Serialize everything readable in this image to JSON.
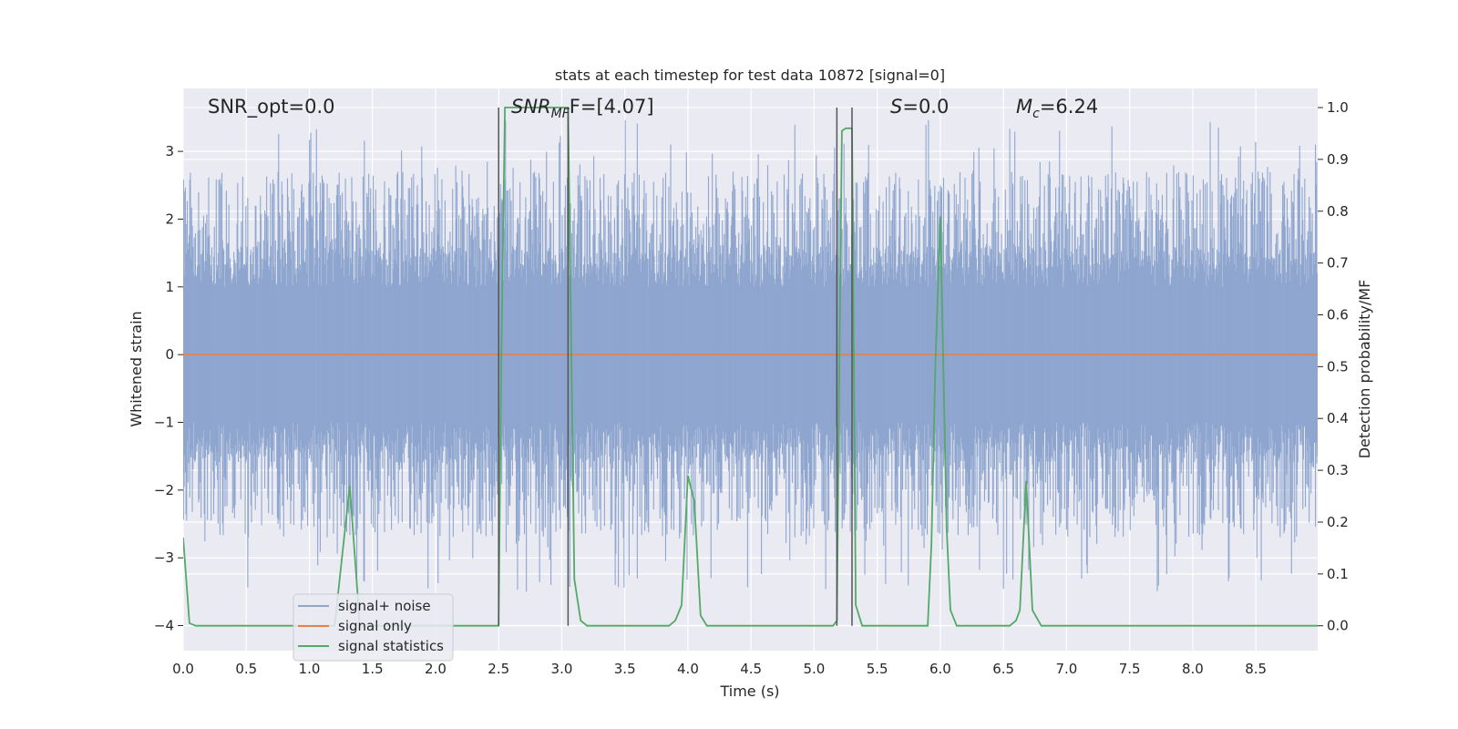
{
  "chart_data": {
    "type": "line",
    "title": "stats at each timestep for test data 10872 [signal=0]",
    "xlabel": "Time (s)",
    "ylabel_left": "Whitened strain",
    "ylabel_right": "Detection probability/MF",
    "xlim": [
      0.0,
      8.99
    ],
    "ylim_left": [
      -4.37,
      3.93
    ],
    "ylim_right": [
      -0.048,
      1.037
    ],
    "x_ticks": [
      "0.0",
      "0.5",
      "1.0",
      "1.5",
      "2.0",
      "2.5",
      "3.0",
      "3.5",
      "4.0",
      "4.5",
      "5.0",
      "5.5",
      "6.0",
      "6.5",
      "7.0",
      "7.5",
      "8.0",
      "8.5"
    ],
    "x_tick_values": [
      0.0,
      0.5,
      1.0,
      1.5,
      2.0,
      2.5,
      3.0,
      3.5,
      4.0,
      4.5,
      5.0,
      5.5,
      6.0,
      6.5,
      7.0,
      7.5,
      8.0,
      8.5
    ],
    "y_ticks_left": [
      "−4",
      "−3",
      "−2",
      "−1",
      "0",
      "1",
      "2",
      "3"
    ],
    "y_tick_values_left": [
      -4,
      -3,
      -2,
      -1,
      0,
      1,
      2,
      3
    ],
    "y_ticks_right": [
      "0.0",
      "0.1",
      "0.2",
      "0.3",
      "0.4",
      "0.5",
      "0.6",
      "0.7",
      "0.8",
      "0.9",
      "1.0"
    ],
    "y_tick_values_right": [
      0.0,
      0.1,
      0.2,
      0.3,
      0.4,
      0.5,
      0.6,
      0.7,
      0.8,
      0.9,
      1.0
    ],
    "grid": true,
    "legend_position": "lower-left",
    "annotations": {
      "snr_opt": "SNR_opt=0.0",
      "snr_mf_sym": "SNR",
      "snr_mf_sub": "MF",
      "snr_mf_rest": "F=[4.07]",
      "s_sym": "S",
      "s_rest": "=0.0",
      "mc_sym": "M",
      "mc_sub": "c",
      "mc_rest": "=6.24"
    },
    "series": [
      {
        "name": "signal+ noise",
        "axis": "left",
        "color": "#8fa6cf",
        "kind": "noise",
        "envelope_typical": 1.3,
        "envelope_extreme": 3.5
      },
      {
        "name": "signal only",
        "axis": "left",
        "color": "#dd8452",
        "x": [
          0.0,
          8.99
        ],
        "y": [
          0.0,
          0.0
        ]
      },
      {
        "name": "signal statistics",
        "axis": "right",
        "color": "#55a868",
        "x": [
          0.0,
          0.05,
          0.1,
          1.2,
          1.32,
          1.4,
          2.45,
          2.5,
          2.52,
          2.55,
          3.0,
          3.05,
          3.1,
          3.15,
          3.2,
          3.85,
          3.9,
          3.95,
          4.0,
          4.05,
          4.1,
          4.15,
          5.15,
          5.18,
          5.2,
          5.22,
          5.25,
          5.3,
          5.33,
          5.38,
          5.45,
          5.9,
          5.93,
          5.96,
          6.0,
          6.05,
          6.08,
          6.13,
          6.55,
          6.6,
          6.63,
          6.68,
          6.73,
          6.8,
          8.99
        ],
        "y": [
          0.17,
          0.005,
          0.0,
          0.0,
          0.27,
          0.0,
          0.0,
          0.0,
          0.5,
          1.0,
          1.0,
          1.0,
          0.09,
          0.01,
          0.0,
          0.0,
          0.01,
          0.04,
          0.29,
          0.24,
          0.02,
          0.0,
          0.0,
          0.01,
          0.5,
          0.955,
          0.96,
          0.96,
          0.04,
          0.0,
          0.0,
          0.0,
          0.16,
          0.5,
          0.79,
          0.19,
          0.03,
          0.0,
          0.0,
          0.01,
          0.03,
          0.28,
          0.03,
          0.0,
          0.0
        ]
      }
    ],
    "vertical_markers": [
      {
        "x": 2.5,
        "y_top": 1.0,
        "y_bottom": 0.0
      },
      {
        "x": 3.05,
        "y_top": 1.0,
        "y_bottom": 0.0
      },
      {
        "x": 5.18,
        "y_top": 1.0,
        "y_bottom": 0.0
      },
      {
        "x": 5.3,
        "y_top": 1.0,
        "y_bottom": 0.0
      }
    ]
  }
}
